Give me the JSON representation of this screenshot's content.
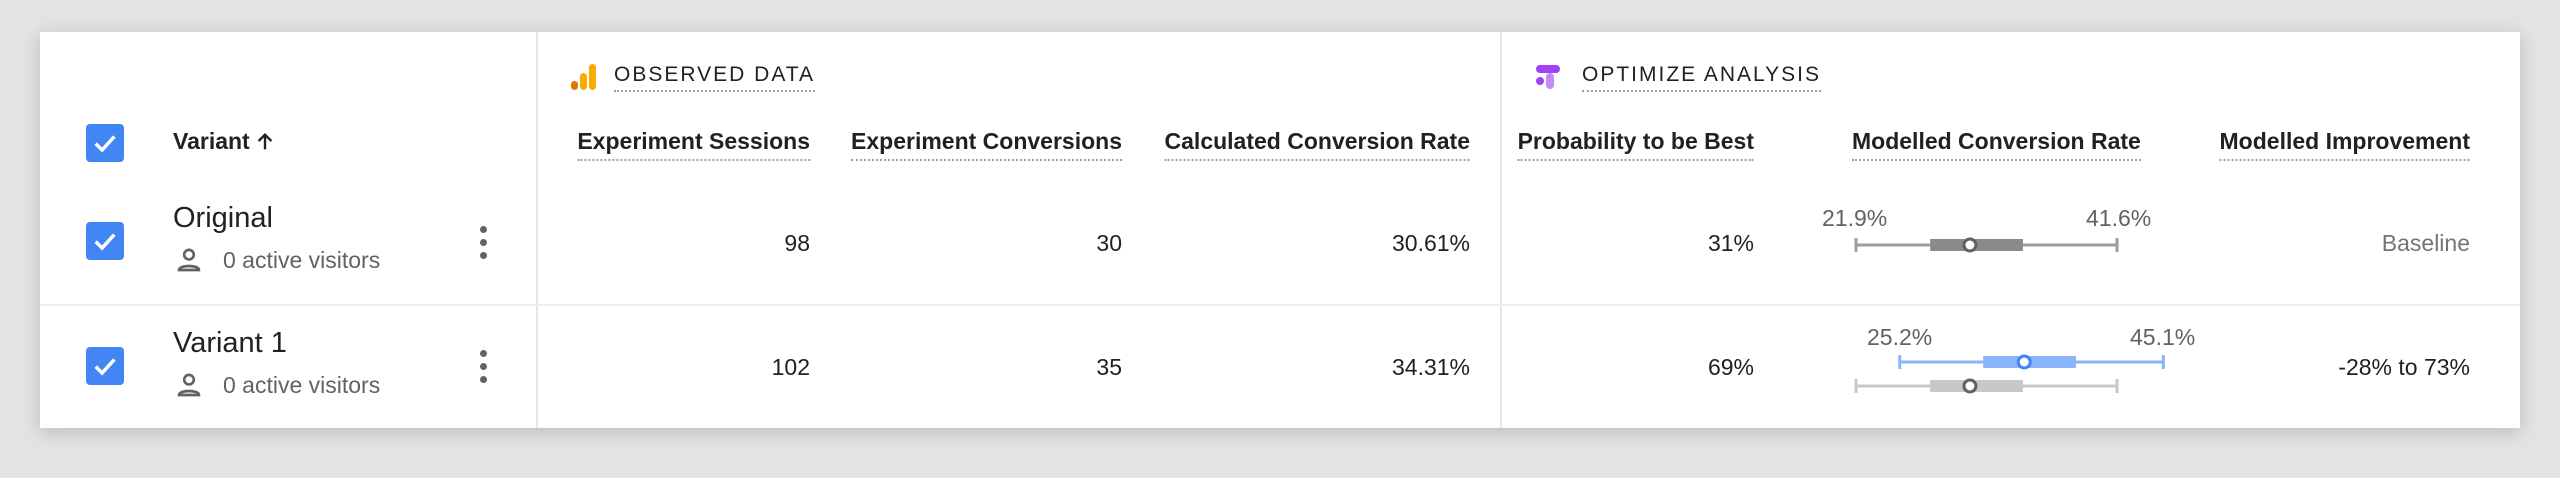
{
  "groups": {
    "observed": "OBSERVED DATA",
    "optimize": "OPTIMIZE ANALYSIS"
  },
  "columns": {
    "variant": "Variant",
    "sessions": "Experiment Sessions",
    "conversions": "Experiment Conversions",
    "calc_rate": "Calculated Conversion Rate",
    "prob_best": "Probability to be Best",
    "modelled_rate": "Modelled Conversion Rate",
    "modelled_improvement": "Modelled Improvement"
  },
  "rows": [
    {
      "name": "Original",
      "visitors": "0 active visitors",
      "sessions": "98",
      "conversions": "30",
      "calc_rate": "30.61%",
      "prob_best": "31%",
      "ci_low_label": "21.9%",
      "ci_high_label": "41.6%",
      "improvement": "Baseline",
      "interval": {
        "low": 21.9,
        "mid_low": 27.5,
        "point": 30.5,
        "mid_high": 34.5,
        "high": 41.6
      }
    },
    {
      "name": "Variant 1",
      "visitors": "0 active visitors",
      "sessions": "102",
      "conversions": "35",
      "calc_rate": "34.31%",
      "prob_best": "69%",
      "ci_low_label": "25.2%",
      "ci_high_label": "45.1%",
      "improvement": "-28% to 73%",
      "interval": {
        "low": 25.2,
        "mid_low": 31.5,
        "point": 34.6,
        "mid_high": 38.5,
        "high": 45.1
      }
    }
  ],
  "colors": {
    "accent": "#4285f4",
    "variant_bar": "#8ab4f8",
    "baseline_bar": "#9e9e9e",
    "baseline_bar_light": "#c8c8c8",
    "analytics_orange": "#f9ab00",
    "optimize_purple": "#a142f4"
  },
  "icons": [
    "checkbox-checked-icon",
    "arrow-up-icon",
    "analytics-icon",
    "optimize-icon",
    "person-icon",
    "more-vert-icon"
  ]
}
